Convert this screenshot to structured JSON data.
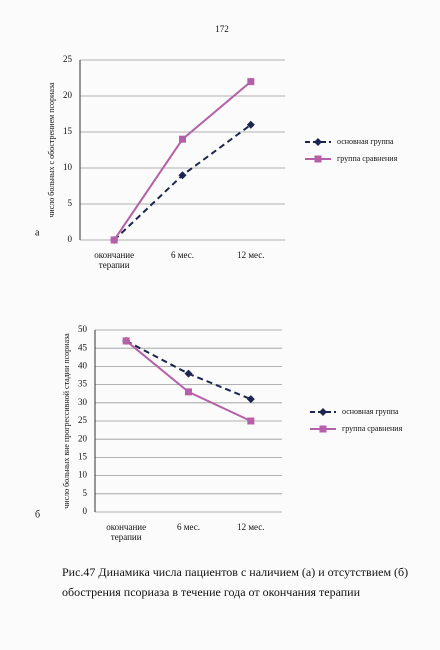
{
  "page_number": "172",
  "chart_data": [
    {
      "type": "line",
      "label": "а",
      "y_label": "число больных с обострением псориаза",
      "categories": [
        "окончание терапии",
        "6 мес.",
        "12 мес."
      ],
      "series": [
        {
          "name": "основная группа",
          "color": "#1c2550",
          "values": [
            0,
            9,
            16
          ]
        },
        {
          "name": "группа сравнения",
          "color": "#b560a8",
          "values": [
            0,
            14,
            22
          ]
        }
      ],
      "ylim": [
        0,
        25
      ],
      "yticks": [
        0,
        5,
        10,
        15,
        20,
        25
      ],
      "grid": true
    },
    {
      "type": "line",
      "label": "б",
      "y_label": "число больных вне прогрессивной стадии псориаза",
      "categories": [
        "окончание терапии",
        "6 мес.",
        "12 мес."
      ],
      "series": [
        {
          "name": "основная группа",
          "color": "#1c2550",
          "values": [
            47,
            38,
            31
          ]
        },
        {
          "name": "группа сравнения",
          "color": "#b560a8",
          "values": [
            47,
            33,
            25
          ]
        }
      ],
      "ylim": [
        0,
        50
      ],
      "yticks": [
        0,
        5,
        10,
        15,
        20,
        25,
        30,
        35,
        40,
        45,
        50
      ],
      "grid": true
    }
  ],
  "caption": "Рис.47 Динамика числа пациентов с наличием (а) и отсутствием (б) обострения псориаза в течение года от окончания терапии"
}
